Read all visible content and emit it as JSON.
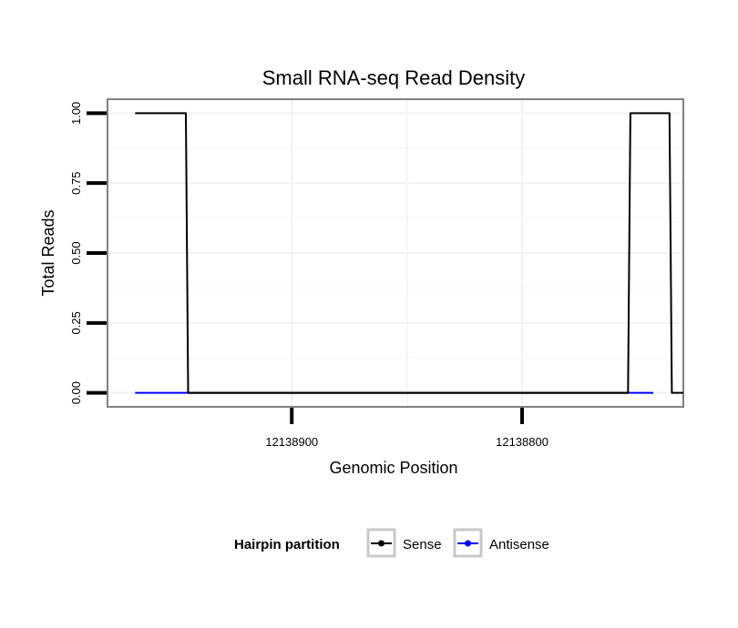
{
  "chart_data": {
    "type": "line",
    "title": "Small RNA-seq Read Density",
    "xlabel": "Genomic Position",
    "ylabel": "Total Reads",
    "x_reversed": true,
    "xlim": [
      12138980,
      12138730
    ],
    "ylim": [
      -0.05,
      1.05
    ],
    "x_ticks": [
      12138900,
      12138800
    ],
    "x_tick_labels": [
      "12138900",
      "12138800"
    ],
    "y_ticks": [
      0,
      0.25,
      0.5,
      0.75,
      1
    ],
    "y_tick_labels": [
      "0.00",
      "0.25",
      "0.50",
      "0.75",
      "1.00"
    ],
    "grid": true,
    "legend": {
      "title": "Hairpin partition",
      "position": "bottom",
      "entries": [
        {
          "name": "Sense",
          "color": "#000000"
        },
        {
          "name": "Antisense",
          "color": "#0000ff"
        }
      ]
    },
    "series": [
      {
        "name": "Antisense",
        "color": "#0000ff",
        "x": [
          12138968,
          12138945,
          12138752,
          12138743
        ],
        "y": [
          0,
          0,
          0,
          0
        ]
      },
      {
        "name": "Sense",
        "color": "#000000",
        "x": [
          12138968,
          12138946,
          12138945,
          12138754,
          12138753,
          12138736,
          12138735,
          12138730
        ],
        "y": [
          1,
          1,
          0,
          0,
          1,
          1,
          0,
          0
        ]
      },
      {
        "name": "Sense",
        "color": "#000000",
        "x": [
          12138945,
          12138754
        ],
        "y": [
          0,
          0
        ]
      }
    ]
  }
}
